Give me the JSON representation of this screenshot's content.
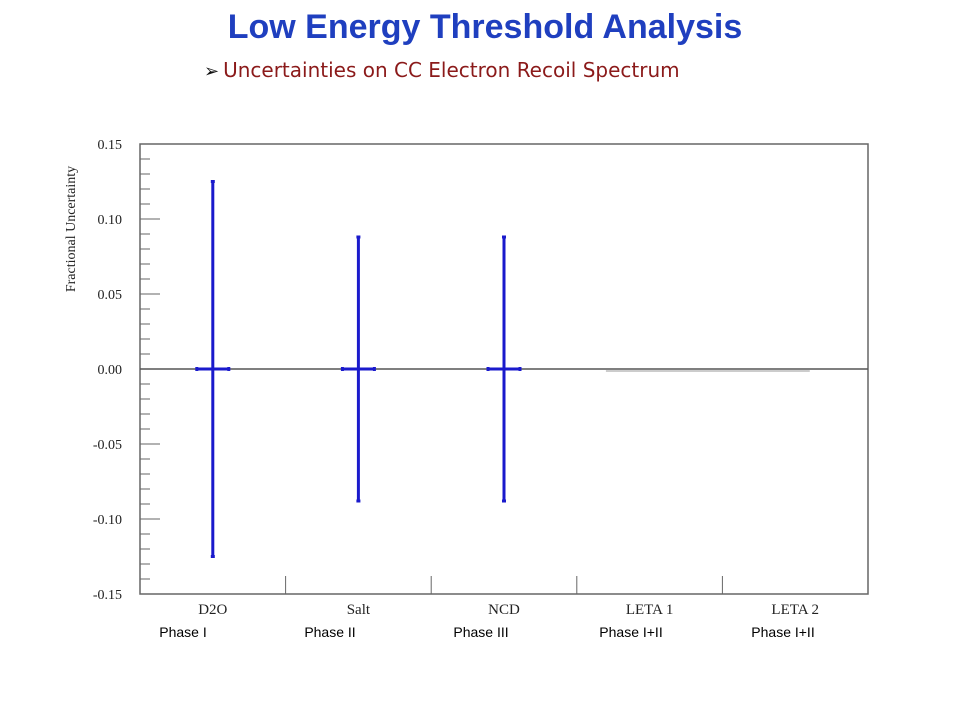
{
  "header": {
    "title": "Low Energy Threshold Analysis",
    "subtitle": "Uncertainties on CC Electron Recoil Spectrum",
    "bullet_icon": "arrow-bullet-icon"
  },
  "colors": {
    "title": "#1f3fbf",
    "subtitle": "#8b1a1a",
    "errorbar": "#1a1acc",
    "zero_line": "#555555"
  },
  "chart_data": {
    "type": "errorbar",
    "ylabel": "Fractional Uncertainty",
    "ylim": [
      -0.15,
      0.15
    ],
    "yticks": [
      "0.15",
      "0.10",
      "0.05",
      "0.00",
      "-0.05",
      "-0.10",
      "-0.15"
    ],
    "yticks_values": [
      0.15,
      0.1,
      0.05,
      0.0,
      -0.05,
      -0.1,
      -0.15
    ],
    "categories": [
      "D2O",
      "Salt",
      "NCD",
      "LETA 1",
      "LETA 2"
    ],
    "phase_labels": [
      "Phase I",
      "Phase II",
      "Phase III",
      "Phase I+II",
      "Phase I+II"
    ],
    "points": [
      {
        "category": "D2O",
        "value": 0.0,
        "err_up": 0.125,
        "err_down": 0.125
      },
      {
        "category": "Salt",
        "value": 0.0,
        "err_up": 0.088,
        "err_down": 0.088
      },
      {
        "category": "NCD",
        "value": 0.0,
        "err_up": 0.088,
        "err_down": 0.088
      },
      {
        "category": "LETA 1",
        "value": 0.0,
        "err_up": 0.0,
        "err_down": 0.0
      },
      {
        "category": "LETA 2",
        "value": 0.0,
        "err_up": 0.0,
        "err_down": 0.0
      }
    ],
    "zero_line": true,
    "grid": false
  }
}
